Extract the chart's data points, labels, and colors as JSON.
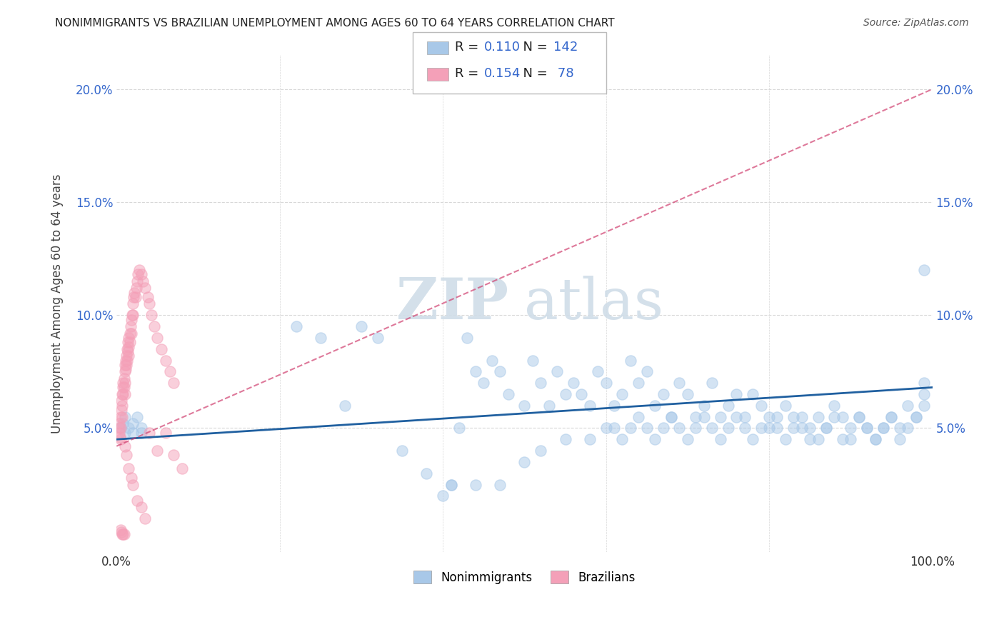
{
  "title": "NONIMMIGRANTS VS BRAZILIAN UNEMPLOYMENT AMONG AGES 60 TO 64 YEARS CORRELATION CHART",
  "source": "Source: ZipAtlas.com",
  "ylabel": "Unemployment Among Ages 60 to 64 years",
  "x_min": 0.0,
  "x_max": 1.0,
  "y_min": -0.005,
  "y_max": 0.215,
  "x_ticks": [
    0.0,
    0.2,
    0.4,
    0.6,
    0.8,
    1.0
  ],
  "x_tick_labels": [
    "0.0%",
    "",
    "",
    "",
    "",
    "100.0%"
  ],
  "y_ticks": [
    0.05,
    0.1,
    0.15,
    0.2
  ],
  "y_tick_labels": [
    "5.0%",
    "10.0%",
    "15.0%",
    "20.0%"
  ],
  "nonimmigrants_color": "#a8c8e8",
  "brazilians_color": "#f4a0b8",
  "nonimmigrants_line_color": "#2060a0",
  "brazilians_line_color": "#d04070",
  "watermark_color": "#d0dde8",
  "background_color": "#ffffff",
  "grid_color": "#d8d8d8",
  "nonimmigrants_x": [
    0.005,
    0.008,
    0.01,
    0.01,
    0.015,
    0.02,
    0.02,
    0.025,
    0.03,
    0.03,
    0.22,
    0.25,
    0.28,
    0.3,
    0.32,
    0.35,
    0.38,
    0.4,
    0.41,
    0.42,
    0.43,
    0.44,
    0.45,
    0.46,
    0.47,
    0.48,
    0.5,
    0.51,
    0.52,
    0.53,
    0.54,
    0.55,
    0.56,
    0.57,
    0.58,
    0.59,
    0.6,
    0.61,
    0.62,
    0.63,
    0.64,
    0.65,
    0.66,
    0.67,
    0.68,
    0.69,
    0.7,
    0.71,
    0.72,
    0.73,
    0.74,
    0.75,
    0.76,
    0.77,
    0.78,
    0.79,
    0.8,
    0.81,
    0.82,
    0.83,
    0.84,
    0.85,
    0.86,
    0.87,
    0.88,
    0.89,
    0.9,
    0.91,
    0.92,
    0.93,
    0.94,
    0.95,
    0.96,
    0.97,
    0.98,
    0.99,
    0.99,
    0.99,
    0.98,
    0.97,
    0.96,
    0.95,
    0.94,
    0.93,
    0.92,
    0.91,
    0.9,
    0.89,
    0.88,
    0.87,
    0.86,
    0.85,
    0.84,
    0.83,
    0.82,
    0.81,
    0.8,
    0.79,
    0.78,
    0.77,
    0.76,
    0.75,
    0.74,
    0.73,
    0.72,
    0.71,
    0.7,
    0.69,
    0.68,
    0.67,
    0.66,
    0.65,
    0.64,
    0.63,
    0.62,
    0.61,
    0.6,
    0.58,
    0.55,
    0.52,
    0.5,
    0.47,
    0.44,
    0.41,
    0.99
  ],
  "nonimmigrants_y": [
    0.05,
    0.052,
    0.048,
    0.055,
    0.05,
    0.052,
    0.048,
    0.055,
    0.05,
    0.048,
    0.095,
    0.09,
    0.06,
    0.095,
    0.09,
    0.04,
    0.03,
    0.02,
    0.025,
    0.05,
    0.09,
    0.075,
    0.07,
    0.08,
    0.075,
    0.065,
    0.06,
    0.08,
    0.07,
    0.06,
    0.075,
    0.065,
    0.07,
    0.065,
    0.06,
    0.075,
    0.07,
    0.06,
    0.065,
    0.08,
    0.07,
    0.075,
    0.06,
    0.065,
    0.055,
    0.07,
    0.065,
    0.055,
    0.06,
    0.07,
    0.055,
    0.06,
    0.065,
    0.055,
    0.065,
    0.06,
    0.05,
    0.055,
    0.06,
    0.055,
    0.05,
    0.045,
    0.055,
    0.05,
    0.06,
    0.055,
    0.045,
    0.055,
    0.05,
    0.045,
    0.05,
    0.055,
    0.045,
    0.05,
    0.055,
    0.06,
    0.065,
    0.07,
    0.055,
    0.06,
    0.05,
    0.055,
    0.05,
    0.045,
    0.05,
    0.055,
    0.05,
    0.045,
    0.055,
    0.05,
    0.045,
    0.05,
    0.055,
    0.05,
    0.045,
    0.05,
    0.055,
    0.05,
    0.045,
    0.05,
    0.055,
    0.05,
    0.045,
    0.05,
    0.055,
    0.05,
    0.045,
    0.05,
    0.055,
    0.05,
    0.045,
    0.05,
    0.055,
    0.05,
    0.045,
    0.05,
    0.05,
    0.045,
    0.045,
    0.04,
    0.035,
    0.025,
    0.025,
    0.025,
    0.12
  ],
  "brazilians_x": [
    0.003,
    0.003,
    0.003,
    0.004,
    0.005,
    0.005,
    0.005,
    0.006,
    0.006,
    0.007,
    0.007,
    0.007,
    0.008,
    0.008,
    0.008,
    0.009,
    0.009,
    0.01,
    0.01,
    0.01,
    0.01,
    0.011,
    0.011,
    0.012,
    0.012,
    0.013,
    0.013,
    0.014,
    0.014,
    0.015,
    0.015,
    0.015,
    0.016,
    0.016,
    0.017,
    0.018,
    0.018,
    0.019,
    0.02,
    0.02,
    0.021,
    0.022,
    0.023,
    0.024,
    0.025,
    0.026,
    0.028,
    0.03,
    0.032,
    0.035,
    0.038,
    0.04,
    0.043,
    0.046,
    0.05,
    0.055,
    0.06,
    0.065,
    0.07,
    0.01,
    0.012,
    0.015,
    0.018,
    0.02,
    0.025,
    0.03,
    0.035,
    0.005,
    0.006,
    0.007,
    0.008,
    0.009,
    0.04,
    0.05,
    0.06,
    0.07,
    0.08
  ],
  "brazilians_y": [
    0.05,
    0.048,
    0.052,
    0.046,
    0.055,
    0.05,
    0.045,
    0.058,
    0.062,
    0.055,
    0.065,
    0.06,
    0.07,
    0.068,
    0.065,
    0.072,
    0.068,
    0.078,
    0.075,
    0.07,
    0.065,
    0.08,
    0.076,
    0.082,
    0.078,
    0.085,
    0.08,
    0.088,
    0.084,
    0.09,
    0.086,
    0.082,
    0.092,
    0.088,
    0.095,
    0.098,
    0.092,
    0.1,
    0.105,
    0.1,
    0.108,
    0.11,
    0.108,
    0.112,
    0.115,
    0.118,
    0.12,
    0.118,
    0.115,
    0.112,
    0.108,
    0.105,
    0.1,
    0.095,
    0.09,
    0.085,
    0.08,
    0.075,
    0.07,
    0.042,
    0.038,
    0.032,
    0.028,
    0.025,
    0.018,
    0.015,
    0.01,
    0.005,
    0.004,
    0.003,
    0.003,
    0.003,
    0.048,
    0.04,
    0.048,
    0.038,
    0.032
  ],
  "nonimm_line_x": [
    0.0,
    1.0
  ],
  "nonimm_line_y": [
    0.045,
    0.068
  ],
  "braz_line_x": [
    0.0,
    1.0
  ],
  "braz_line_y": [
    0.042,
    0.2
  ]
}
